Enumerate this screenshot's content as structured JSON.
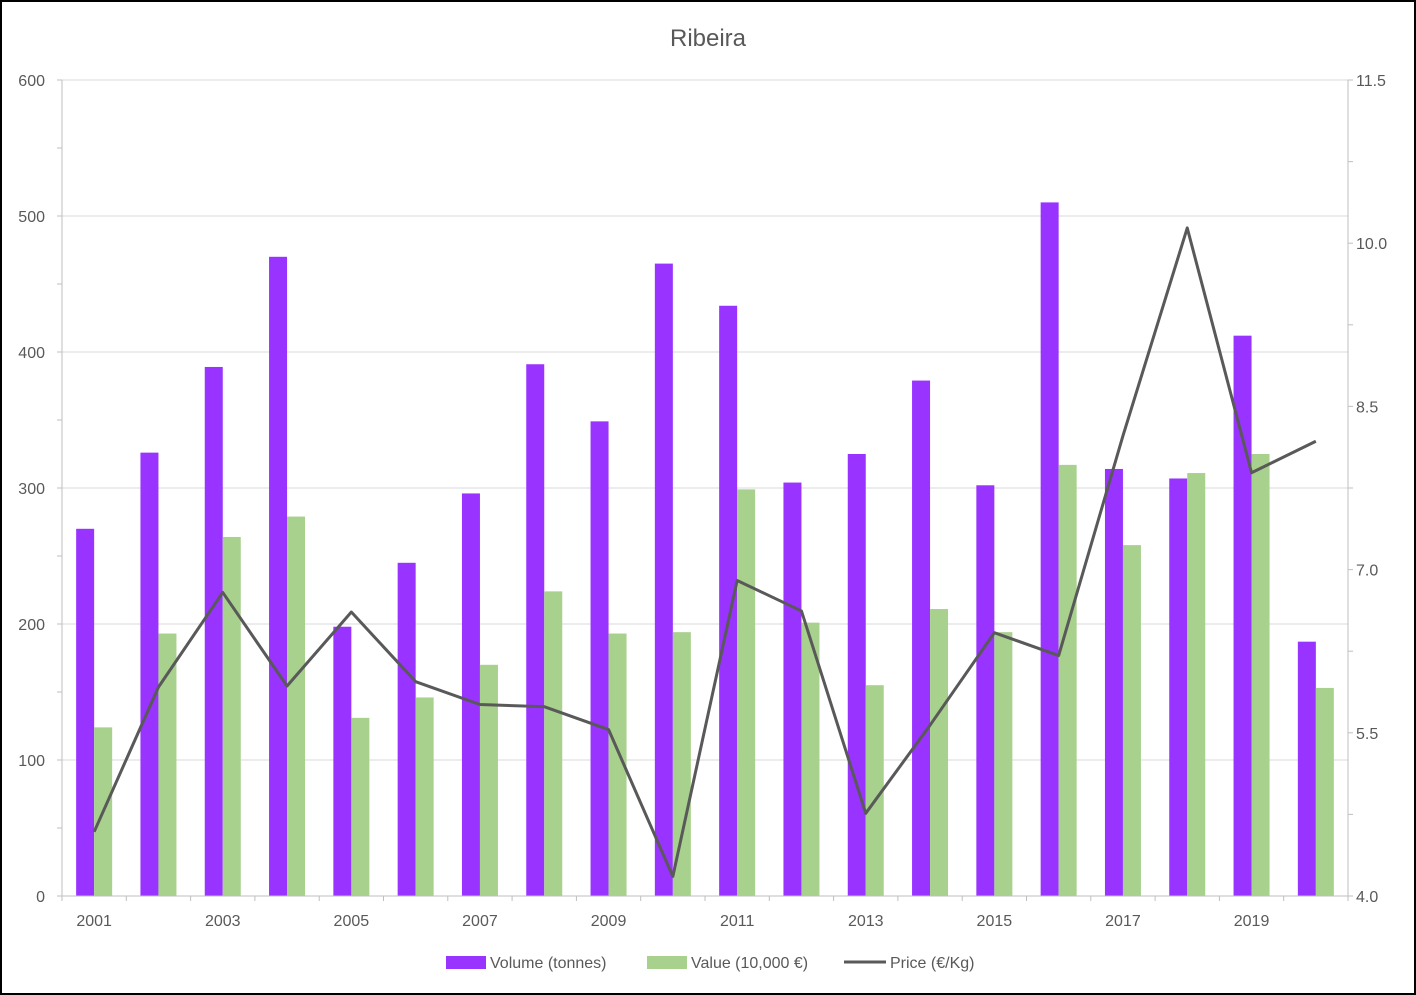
{
  "chart_data": {
    "type": "bar",
    "title": "Ribeira",
    "categories": [
      "2001",
      "2002",
      "2003",
      "2004",
      "2005",
      "2006",
      "2007",
      "2008",
      "2009",
      "2010",
      "2011",
      "2012",
      "2013",
      "2014",
      "2015",
      "2016",
      "2017",
      "2018",
      "2019",
      "2020"
    ],
    "category_tick_labels": [
      "2001",
      "",
      "2003",
      "",
      "2005",
      "",
      "2007",
      "",
      "2009",
      "",
      "2011",
      "",
      "2013",
      "",
      "2015",
      "",
      "2017",
      "",
      "2019",
      ""
    ],
    "series": [
      {
        "name": "Volume (tonnes)",
        "type": "bar",
        "axis": "left",
        "color": "#9933FF",
        "values": [
          270,
          326,
          389,
          470,
          198,
          245,
          296,
          391,
          349,
          465,
          434,
          304,
          325,
          379,
          302,
          510,
          314,
          307,
          412,
          187
        ]
      },
      {
        "name": "Value (10,000 €)",
        "type": "bar",
        "axis": "left",
        "color": "#A9D18E",
        "values": [
          124,
          193,
          264,
          279,
          131,
          146,
          170,
          224,
          193,
          194,
          299,
          201,
          155,
          211,
          194,
          317,
          258,
          311,
          325,
          153
        ]
      },
      {
        "name": "Price (€/Kg)",
        "type": "line",
        "axis": "right",
        "color": "#595959",
        "values": [
          4.59,
          5.92,
          6.79,
          5.93,
          6.61,
          5.97,
          5.76,
          5.74,
          5.53,
          4.18,
          6.9,
          6.62,
          4.76,
          5.57,
          6.42,
          6.21,
          8.23,
          10.14,
          7.89,
          8.18
        ]
      }
    ],
    "y_left": {
      "min": 0,
      "max": 600,
      "ticks": [
        "0",
        "100",
        "200",
        "300",
        "400",
        "500",
        "600"
      ]
    },
    "y_right": {
      "min": 4.0,
      "max": 11.5,
      "ticks": [
        "4.0",
        "5.5",
        "7.0",
        "8.5",
        "10.0",
        "11.5"
      ]
    },
    "grid": true,
    "legend_position": "bottom"
  }
}
